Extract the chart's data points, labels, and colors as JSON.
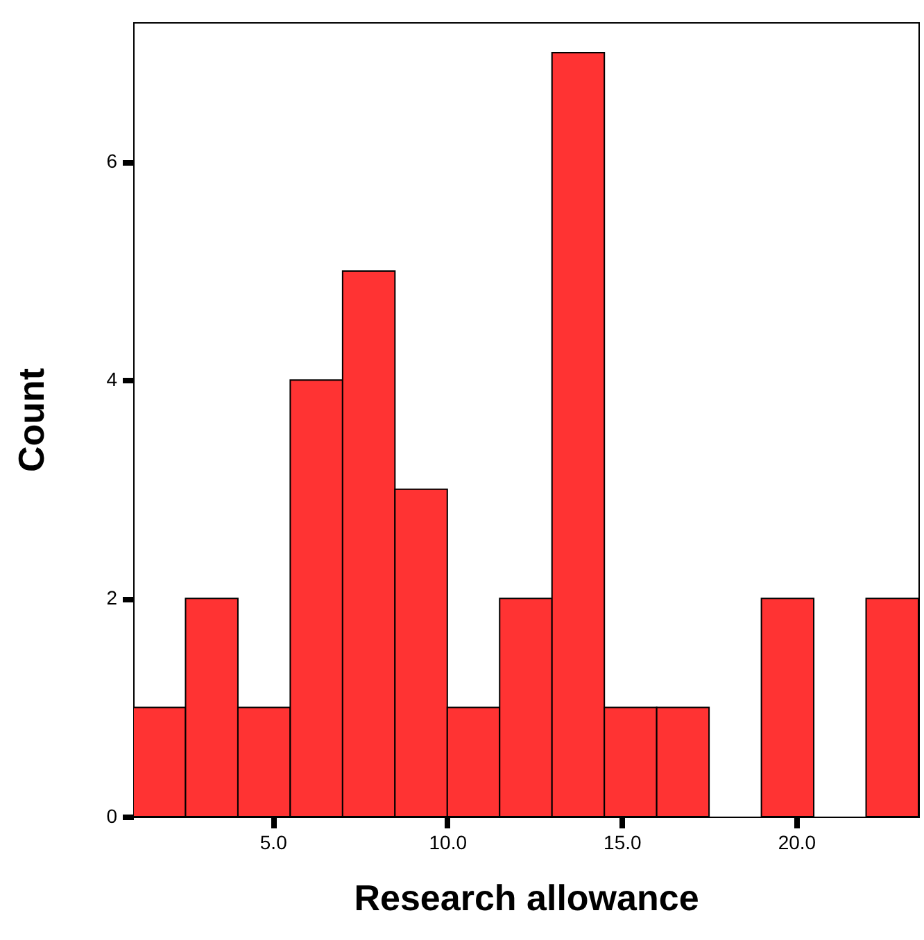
{
  "chart_data": {
    "type": "histogram",
    "xlabel": "Research allowance",
    "ylabel": "Count",
    "bins": [
      1,
      2.5,
      4,
      5.5,
      7,
      8.5,
      10,
      11.5,
      13,
      14.5,
      16,
      17.5,
      19,
      20.5,
      22,
      23.5
    ],
    "values": [
      1,
      2,
      1,
      4,
      5,
      3,
      1,
      2,
      7,
      1,
      1,
      0,
      2,
      0,
      2
    ],
    "color": "#ff3333",
    "xlim": [
      1,
      23.5
    ],
    "ylim": [
      0,
      7.28
    ],
    "xticks": [
      {
        "value": 5,
        "label": "5.0"
      },
      {
        "value": 10,
        "label": "10.0"
      },
      {
        "value": 15,
        "label": "15.0"
      },
      {
        "value": 20,
        "label": "20.0"
      }
    ],
    "yticks": [
      0,
      2,
      4,
      6
    ],
    "grid": false
  }
}
